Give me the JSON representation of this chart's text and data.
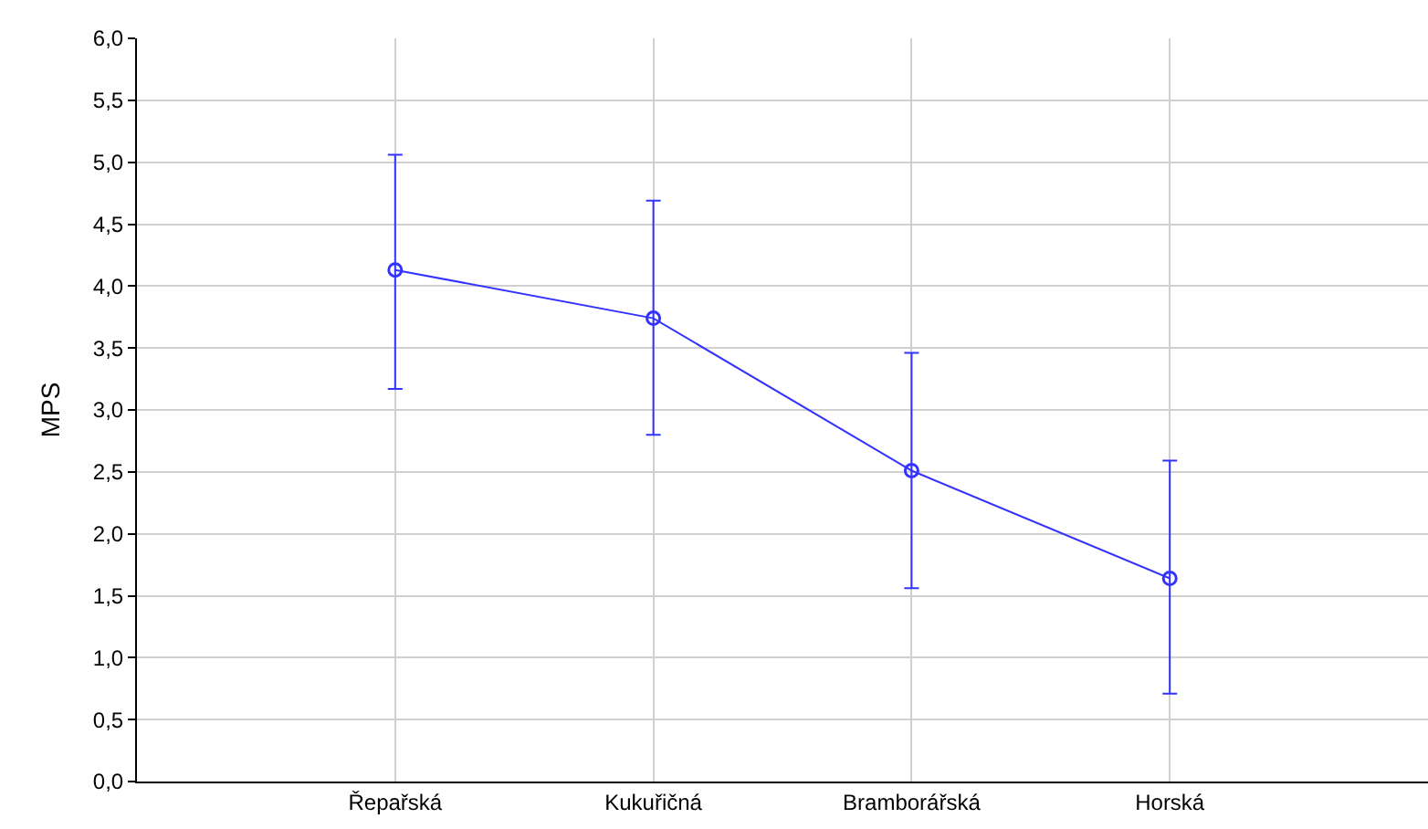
{
  "chart_data": {
    "type": "line",
    "ylabel": "MPS",
    "categories": [
      "Řepařská",
      "Kukuřičná",
      "Bramborářská",
      "Horská"
    ],
    "series": [
      {
        "color": "#3333ff",
        "values": [
          4.13,
          3.74,
          2.51,
          1.64
        ],
        "errors": [
          [
            3.17,
            5.06
          ],
          [
            2.8,
            4.69
          ],
          [
            1.56,
            3.46
          ],
          [
            0.71,
            2.59
          ]
        ]
      }
    ],
    "ylim": [
      0,
      6
    ],
    "yticks": [
      {
        "value": 0,
        "label": "0,0"
      },
      {
        "value": 0.5,
        "label": "0,5"
      },
      {
        "value": 1,
        "label": "1,0"
      },
      {
        "value": 1.5,
        "label": "1,5"
      },
      {
        "value": 2,
        "label": "2,0"
      },
      {
        "value": 2.5,
        "label": "2,5"
      },
      {
        "value": 3,
        "label": "3,0"
      },
      {
        "value": 3.5,
        "label": "3,5"
      },
      {
        "value": 4,
        "label": "4,0"
      },
      {
        "value": 4.5,
        "label": "4,5"
      },
      {
        "value": 5,
        "label": "5,0"
      },
      {
        "value": 5.5,
        "label": "5,5"
      },
      {
        "value": 6,
        "label": "6,0"
      }
    ],
    "grid": true,
    "marker": "circle",
    "line_style": "solid",
    "legend": false
  }
}
